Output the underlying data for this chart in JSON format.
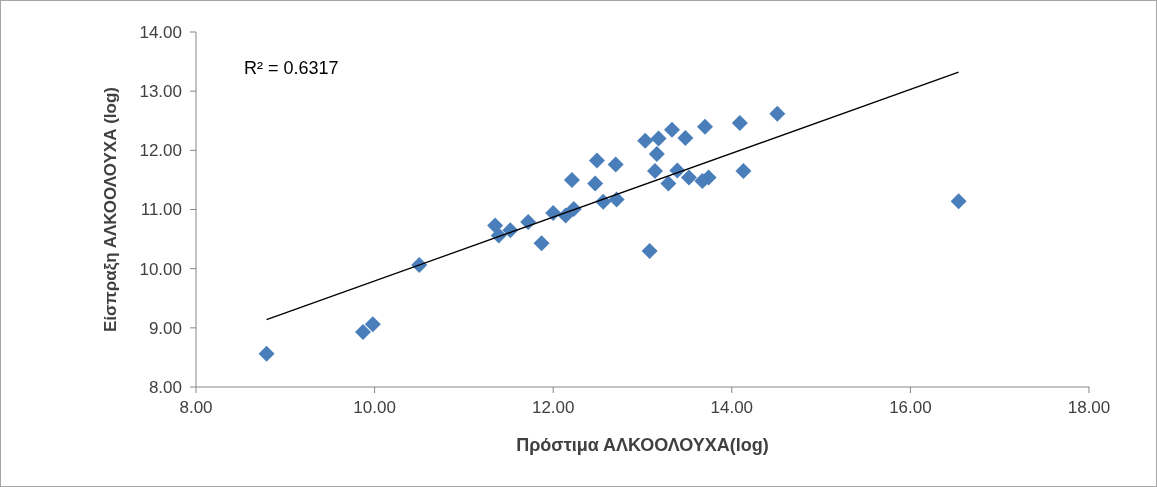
{
  "chart_data": {
    "type": "scatter",
    "xlabel": "Πρόστιμα ΑΛΚΟΟΛΟΥΧΑ(log)",
    "ylabel": "Είσπραξη ΑΛΚΟΟΛΟΥΧΑ (log)",
    "annotations": [
      "R² = 0.6317"
    ],
    "xlim": [
      8,
      18
    ],
    "ylim": [
      8,
      14
    ],
    "xticks": [
      {
        "value": 8,
        "label": "8.00"
      },
      {
        "value": 10,
        "label": "10.00"
      },
      {
        "value": 12,
        "label": "12.00"
      },
      {
        "value": 14,
        "label": "14.00"
      },
      {
        "value": 16,
        "label": "16.00"
      },
      {
        "value": 18,
        "label": "18.00"
      }
    ],
    "yticks": [
      {
        "value": 8,
        "label": "8.00"
      },
      {
        "value": 9,
        "label": "9.00"
      },
      {
        "value": 10,
        "label": "10.00"
      },
      {
        "value": 11,
        "label": "11.00"
      },
      {
        "value": 12,
        "label": "12.00"
      },
      {
        "value": 13,
        "label": "13.00"
      },
      {
        "value": 14,
        "label": "14.00"
      }
    ],
    "grid": false,
    "series": [
      {
        "color": "#4a7ebb",
        "marker": "diamond",
        "x": [
          8.79,
          9.87,
          9.98,
          10.5,
          11.35,
          11.39,
          11.52,
          11.72,
          11.87,
          12.0,
          12.14,
          12.23,
          12.21,
          12.47,
          12.49,
          12.7,
          12.56,
          12.71,
          13.03,
          13.18,
          13.16,
          13.33,
          13.48,
          13.7,
          14.09,
          14.51,
          13.14,
          13.39,
          13.29,
          13.52,
          13.67,
          13.74,
          14.13,
          13.08,
          16.54
        ],
        "values": [
          8.56,
          8.93,
          9.06,
          10.06,
          10.73,
          10.56,
          10.65,
          10.79,
          10.43,
          10.94,
          10.9,
          11.01,
          11.5,
          11.44,
          11.83,
          11.76,
          11.13,
          11.17,
          12.16,
          12.2,
          11.94,
          12.35,
          12.21,
          12.4,
          12.46,
          12.62,
          11.65,
          11.66,
          11.44,
          11.54,
          11.48,
          11.54,
          11.65,
          10.3,
          11.14
        ]
      },
      {
        "type": "line",
        "color": "#000000",
        "marker": "none",
        "line_style": "solid",
        "x": [
          8.79,
          16.54
        ],
        "values": [
          9.14,
          13.32
        ]
      }
    ]
  }
}
